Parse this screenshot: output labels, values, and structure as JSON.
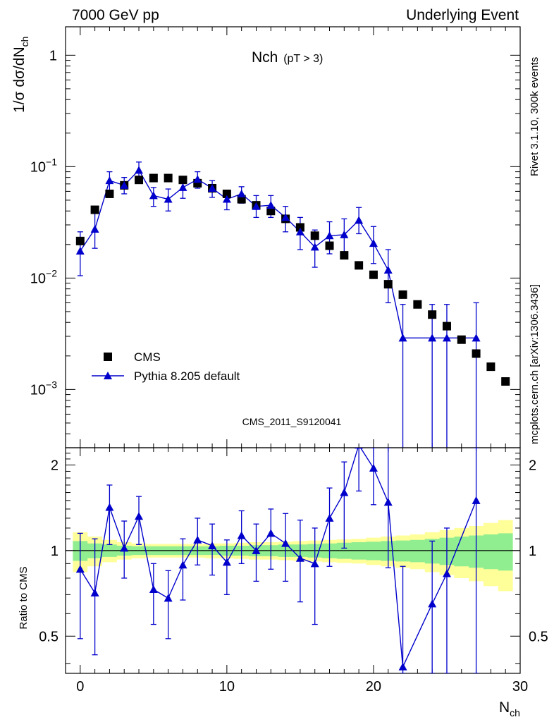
{
  "header": {
    "left": "7000 GeV pp",
    "right": "Underlying Event"
  },
  "side": {
    "rivet": "Rivet 3.1.10,  300k events",
    "mcplots": "mcplots.cern.ch [arXiv:1306.3436]"
  },
  "colors": {
    "mc": "#0000cc",
    "data": "#000000",
    "band_inner": "#90ee90",
    "band_outer": "#ffff99"
  },
  "chart_data": {
    "type": "scatter",
    "title_main": "Nch",
    "title_sub": "(pT >  3)",
    "xlabel_main": "N",
    "xlabel_sub": "ch",
    "ylabel": {
      "prefix": "1/",
      "sigma": "σ",
      "mid": " d",
      "sigma2": "σ",
      "suffix": "/dN",
      "sub": "ch"
    },
    "ratio_ylabel": "Ratio to CMS",
    "watermark": "CMS_2011_S9120041",
    "xlim": [
      -1,
      30
    ],
    "ylim": [
      0.0003,
      1.8
    ],
    "yscale": "log",
    "ratio_ylim": [
      0.37,
      2.3
    ],
    "x_ticks": [
      "0",
      "10",
      "20",
      "30"
    ],
    "y_ticks": [
      {
        "value": 1,
        "base": "1",
        "exp": ""
      },
      {
        "value": 0.1,
        "base": "10",
        "exp": "−1"
      },
      {
        "value": 0.01,
        "base": "10",
        "exp": "−2"
      },
      {
        "value": 0.001,
        "base": "10",
        "exp": "−3"
      }
    ],
    "ratio_ticks": [
      {
        "value": 0.5,
        "label": "0.5"
      },
      {
        "value": 1,
        "label": "1"
      },
      {
        "value": 2,
        "label": "2"
      }
    ],
    "legend": {
      "position": "lower-left",
      "entries": [
        "CMS",
        "Pythia 8.205 default"
      ]
    },
    "cms": {
      "name": "CMS",
      "x": [
        0,
        1,
        2,
        3,
        4,
        5,
        6,
        7,
        8,
        9,
        10,
        11,
        12,
        13,
        14,
        15,
        16,
        17,
        18,
        19,
        20,
        21,
        22,
        23,
        24,
        25,
        26,
        27,
        28,
        29
      ],
      "y": [
        0.0215,
        0.041,
        0.057,
        0.068,
        0.076,
        0.079,
        0.079,
        0.076,
        0.071,
        0.064,
        0.057,
        0.051,
        0.045,
        0.04,
        0.034,
        0.0285,
        0.024,
        0.0195,
        0.016,
        0.013,
        0.0107,
        0.0088,
        0.0071,
        0.0058,
        0.0047,
        0.0037,
        0.0028,
        0.0021,
        0.0016,
        0.00118
      ]
    },
    "pythia": {
      "name": "Pythia 8.205 default",
      "x": [
        0,
        1,
        2,
        3,
        4,
        5,
        6,
        7,
        8,
        9,
        10,
        11,
        12,
        13,
        14,
        15,
        16,
        17,
        18,
        19,
        20,
        21,
        22,
        24,
        25,
        27
      ],
      "y": [
        0.0175,
        0.0275,
        0.075,
        0.068,
        0.093,
        0.055,
        0.051,
        0.065,
        0.077,
        0.064,
        0.051,
        0.057,
        0.044,
        0.045,
        0.035,
        0.026,
        0.019,
        0.024,
        0.0245,
        0.033,
        0.0205,
        0.0118,
        0.0029,
        0.0029,
        0.0029,
        0.0029
      ],
      "y_lo": [
        0.0105,
        0.0185,
        0.06,
        0.057,
        0.079,
        0.044,
        0.04,
        0.052,
        0.064,
        0.053,
        0.041,
        0.047,
        0.035,
        0.035,
        0.026,
        0.018,
        0.0125,
        0.0165,
        0.0165,
        0.025,
        0.0135,
        0.006,
        1e-05,
        1e-05,
        1e-05,
        1e-05
      ],
      "y_hi": [
        0.026,
        0.038,
        0.09,
        0.08,
        0.11,
        0.065,
        0.063,
        0.078,
        0.09,
        0.075,
        0.061,
        0.066,
        0.055,
        0.055,
        0.044,
        0.035,
        0.027,
        0.032,
        0.034,
        0.043,
        0.029,
        0.018,
        0.0058,
        0.0058,
        0.0058,
        0.006
      ],
      "ratio": [
        0.86,
        0.71,
        1.42,
        1.02,
        1.32,
        0.73,
        0.68,
        0.89,
        1.09,
        1.04,
        0.91,
        1.13,
        1.0,
        1.15,
        1.06,
        0.94,
        0.9,
        1.3,
        1.6,
        2.35,
        1.95,
        1.48,
        0.39,
        0.65,
        0.83,
        1.5
      ],
      "ratio_lo": [
        0.49,
        0.43,
        1.05,
        0.8,
        1.05,
        0.55,
        0.49,
        0.67,
        0.89,
        0.82,
        0.7,
        0.9,
        0.78,
        0.86,
        0.78,
        0.66,
        0.55,
        0.88,
        1.02,
        1.62,
        1.45,
        0.87,
        0.37,
        0.37,
        0.37,
        0.37
      ],
      "ratio_hi": [
        1.15,
        1.1,
        1.7,
        1.27,
        1.55,
        0.9,
        0.85,
        1.1,
        1.3,
        1.24,
        1.09,
        1.38,
        1.24,
        1.4,
        1.35,
        1.28,
        1.2,
        1.66,
        2.05,
        2.3,
        2.3,
        2.3,
        0.88,
        1.08,
        1.2,
        2.3
      ]
    },
    "band": {
      "x": [
        0,
        1,
        2,
        3,
        4,
        5,
        6,
        7,
        8,
        9,
        10,
        11,
        12,
        13,
        14,
        15,
        16,
        17,
        18,
        19,
        20,
        21,
        22,
        23,
        24,
        25,
        26,
        27,
        28,
        29
      ],
      "inner": [
        0.08,
        0.06,
        0.05,
        0.04,
        0.035,
        0.035,
        0.035,
        0.035,
        0.035,
        0.035,
        0.04,
        0.04,
        0.045,
        0.045,
        0.05,
        0.05,
        0.055,
        0.06,
        0.065,
        0.07,
        0.075,
        0.08,
        0.085,
        0.09,
        0.1,
        0.11,
        0.12,
        0.13,
        0.14,
        0.15
      ],
      "outer": [
        0.16,
        0.12,
        0.09,
        0.07,
        0.06,
        0.055,
        0.055,
        0.055,
        0.055,
        0.06,
        0.06,
        0.065,
        0.07,
        0.07,
        0.075,
        0.08,
        0.085,
        0.09,
        0.095,
        0.1,
        0.11,
        0.12,
        0.13,
        0.14,
        0.16,
        0.18,
        0.2,
        0.22,
        0.25,
        0.28
      ]
    }
  }
}
